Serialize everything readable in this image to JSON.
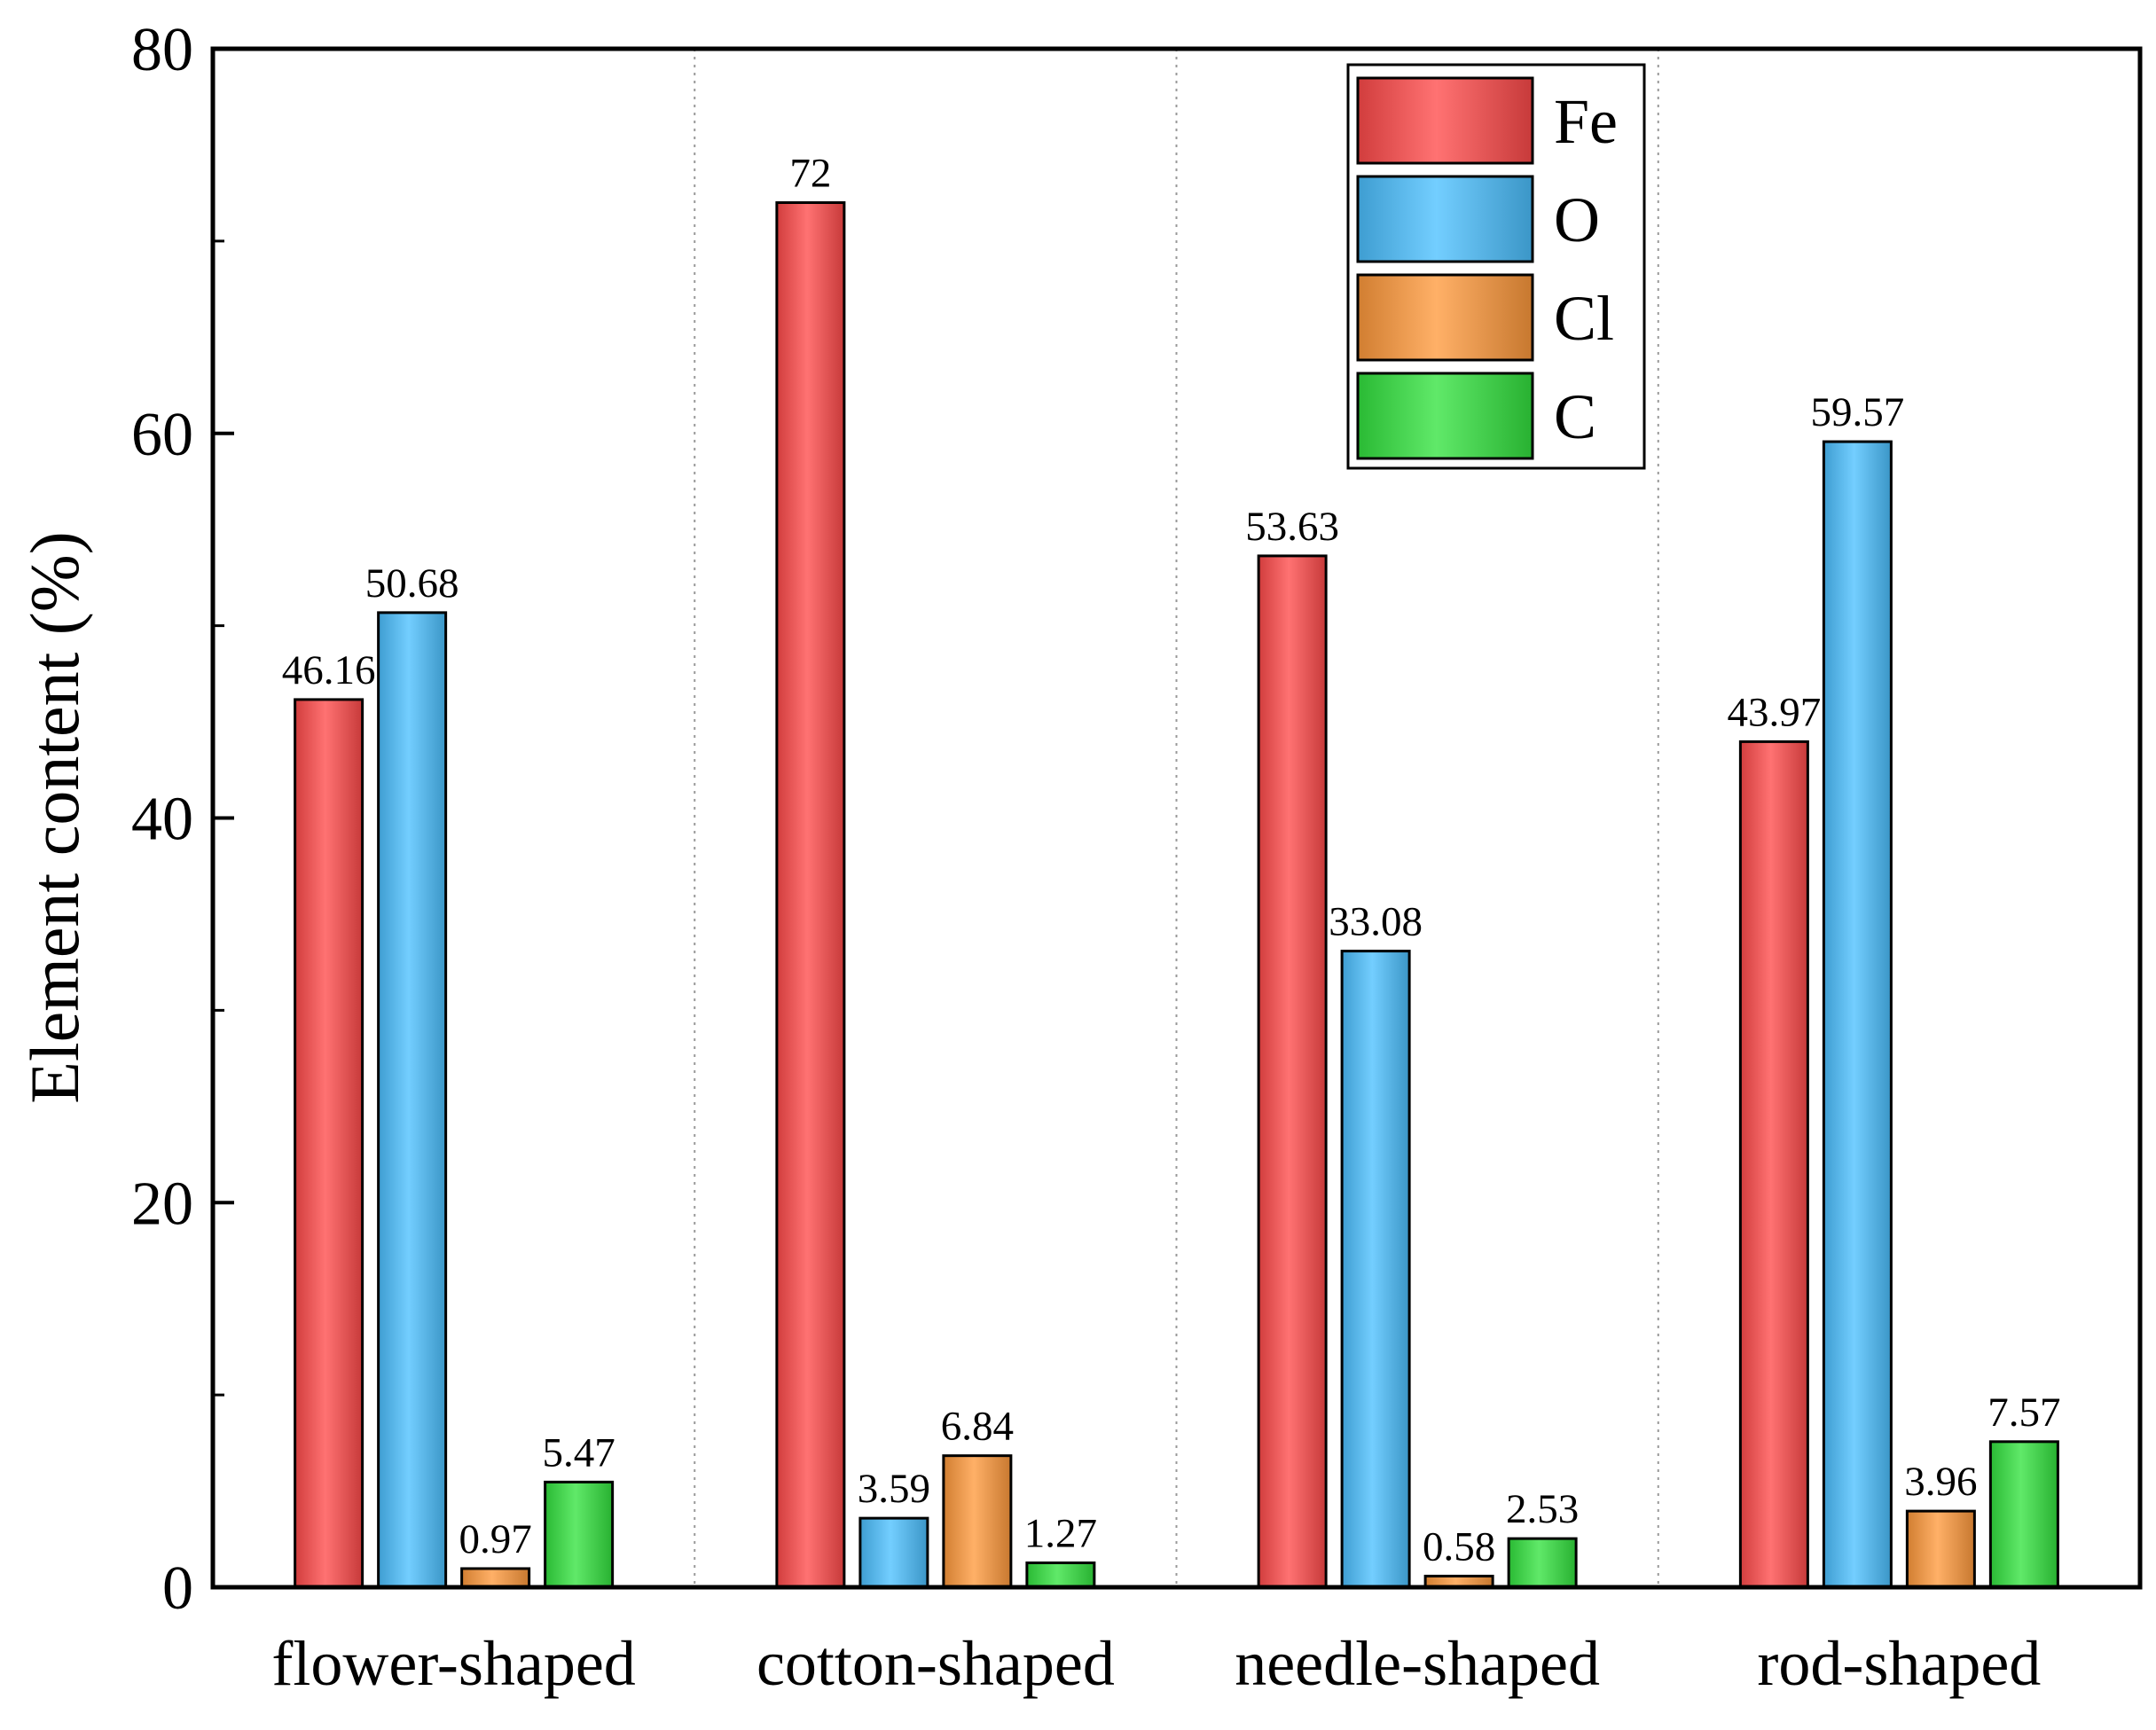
{
  "chart_data": {
    "type": "bar",
    "title": "",
    "xlabel": "",
    "ylabel": "Element content (%)",
    "ylim": [
      0,
      80
    ],
    "yticks": [
      0,
      20,
      40,
      60,
      80
    ],
    "categories": [
      "flower-shaped",
      "cotton-shaped",
      "needle-shaped",
      "rod-shaped"
    ],
    "series": [
      {
        "name": "Fe",
        "color": "#ff4a4a",
        "values": [
          46.16,
          72,
          53.63,
          43.97
        ],
        "labels": [
          "46.16",
          "72",
          "53.63",
          "43.97"
        ]
      },
      {
        "name": "O",
        "color": "#4cc0ff",
        "values": [
          50.68,
          3.59,
          33.08,
          59.57
        ],
        "labels": [
          "50.68",
          "3.59",
          "33.08",
          "59.57"
        ]
      },
      {
        "name": "Cl",
        "color": "#ff9a3c",
        "values": [
          0.97,
          6.84,
          0.58,
          3.96
        ],
        "labels": [
          "0.97",
          "6.84",
          "0.58",
          "3.96"
        ]
      },
      {
        "name": "C",
        "color": "#33e33f",
        "values": [
          5.47,
          1.27,
          2.53,
          7.57
        ],
        "labels": [
          "5.47",
          "1.27",
          "2.53",
          "7.57"
        ]
      }
    ],
    "legend": "top-right",
    "grid": false,
    "group_separators": "dotted"
  }
}
